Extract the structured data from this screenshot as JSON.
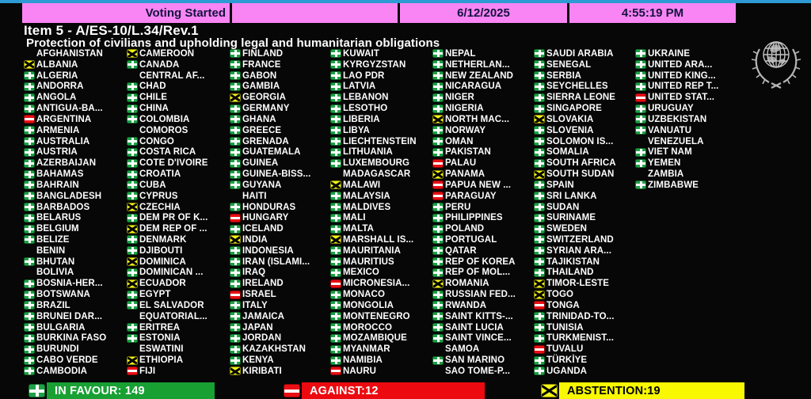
{
  "colors": {
    "magenta": "#f885f3",
    "cyan": "#2e9ad3",
    "green": "#18a033",
    "red": "#ec0a10",
    "yellow": "#f8f800",
    "icon_green": "#1fa148",
    "icon_red": "#e90f15",
    "icon_yellow": "#f4f414"
  },
  "header": {
    "status": "Voting Started",
    "date": "6/12/2025",
    "time": "4:55:19 PM"
  },
  "title": "Item 5 - A/ES-10/L.34/Rev.1",
  "subtitle": "Protection of civilians and upholding legal and humanitarian obligations",
  "legend": {
    "in_favour": {
      "text": "IN FAVOUR: 149",
      "count": 149
    },
    "against": {
      "text": "AGAINST:12",
      "count": 12
    },
    "abstention": {
      "text": "ABSTENTION:19",
      "count": 19
    }
  },
  "board": {
    "columns": [
      {
        "items": [
          {
            "name": "AFGHANISTAN",
            "vote": "none"
          },
          {
            "name": "ALBANIA",
            "vote": "abstain"
          },
          {
            "name": "ALGERIA",
            "vote": "yes"
          },
          {
            "name": "ANDORRA",
            "vote": "yes"
          },
          {
            "name": "ANGOLA",
            "vote": "yes"
          },
          {
            "name": "ANTIGUA-BA...",
            "vote": "yes"
          },
          {
            "name": "ARGENTINA",
            "vote": "no"
          },
          {
            "name": "ARMENIA",
            "vote": "yes"
          },
          {
            "name": "AUSTRALIA",
            "vote": "yes"
          },
          {
            "name": "AUSTRIA",
            "vote": "yes"
          },
          {
            "name": "AZERBAIJAN",
            "vote": "yes"
          },
          {
            "name": "BAHAMAS",
            "vote": "yes"
          },
          {
            "name": "BAHRAIN",
            "vote": "yes"
          },
          {
            "name": "BANGLADESH",
            "vote": "yes"
          },
          {
            "name": "BARBADOS",
            "vote": "yes"
          },
          {
            "name": "BELARUS",
            "vote": "yes"
          },
          {
            "name": "BELGIUM",
            "vote": "yes"
          },
          {
            "name": "BELIZE",
            "vote": "yes"
          },
          {
            "name": "BENIN",
            "vote": "none"
          },
          {
            "name": "BHUTAN",
            "vote": "yes"
          },
          {
            "name": "BOLIVIA",
            "vote": "none"
          },
          {
            "name": "BOSNIA-HER...",
            "vote": "yes"
          },
          {
            "name": "BOTSWANA",
            "vote": "yes"
          },
          {
            "name": "BRAZIL",
            "vote": "yes"
          },
          {
            "name": "BRUNEI DAR...",
            "vote": "yes"
          },
          {
            "name": "BULGARIA",
            "vote": "yes"
          },
          {
            "name": "BURKINA FASO",
            "vote": "yes"
          },
          {
            "name": "BURUNDI",
            "vote": "yes"
          },
          {
            "name": "CABO VERDE",
            "vote": "yes"
          },
          {
            "name": "CAMBODIA",
            "vote": "yes"
          }
        ]
      },
      {
        "items": [
          {
            "name": "CAMEROON",
            "vote": "abstain"
          },
          {
            "name": "CANADA",
            "vote": "yes"
          },
          {
            "name": "CENTRAL AF...",
            "vote": "none"
          },
          {
            "name": "CHAD",
            "vote": "yes"
          },
          {
            "name": "CHILE",
            "vote": "yes"
          },
          {
            "name": "CHINA",
            "vote": "yes"
          },
          {
            "name": "COLOMBIA",
            "vote": "yes"
          },
          {
            "name": "COMOROS",
            "vote": "none"
          },
          {
            "name": "CONGO",
            "vote": "yes"
          },
          {
            "name": "COSTA RICA",
            "vote": "yes"
          },
          {
            "name": "COTE D'IVOIRE",
            "vote": "yes"
          },
          {
            "name": "CROATIA",
            "vote": "yes"
          },
          {
            "name": "CUBA",
            "vote": "yes"
          },
          {
            "name": "CYPRUS",
            "vote": "yes"
          },
          {
            "name": "CZECHIA",
            "vote": "abstain"
          },
          {
            "name": "DEM PR OF K...",
            "vote": "yes"
          },
          {
            "name": "DEM REP OF ...",
            "vote": "abstain"
          },
          {
            "name": "DENMARK",
            "vote": "yes"
          },
          {
            "name": "DJIBOUTI",
            "vote": "yes"
          },
          {
            "name": "DOMINICA",
            "vote": "abstain"
          },
          {
            "name": "DOMINICAN ...",
            "vote": "yes"
          },
          {
            "name": "ECUADOR",
            "vote": "abstain"
          },
          {
            "name": "EGYPT",
            "vote": "yes"
          },
          {
            "name": "EL SALVADOR",
            "vote": "yes"
          },
          {
            "name": "EQUATORIAL...",
            "vote": "none"
          },
          {
            "name": "ERITREA",
            "vote": "yes"
          },
          {
            "name": "ESTONIA",
            "vote": "yes"
          },
          {
            "name": "ESWATINI",
            "vote": "none"
          },
          {
            "name": "ETHIOPIA",
            "vote": "abstain"
          },
          {
            "name": "FIJI",
            "vote": "no"
          }
        ]
      },
      {
        "items": [
          {
            "name": "FINLAND",
            "vote": "yes"
          },
          {
            "name": "FRANCE",
            "vote": "yes"
          },
          {
            "name": "GABON",
            "vote": "yes"
          },
          {
            "name": "GAMBIA",
            "vote": "yes"
          },
          {
            "name": "GEORGIA",
            "vote": "abstain"
          },
          {
            "name": "GERMANY",
            "vote": "yes"
          },
          {
            "name": "GHANA",
            "vote": "yes"
          },
          {
            "name": "GREECE",
            "vote": "yes"
          },
          {
            "name": "GRENADA",
            "vote": "yes"
          },
          {
            "name": "GUATEMALA",
            "vote": "yes"
          },
          {
            "name": "GUINEA",
            "vote": "yes"
          },
          {
            "name": "GUINEA-BISS...",
            "vote": "yes"
          },
          {
            "name": "GUYANA",
            "vote": "yes"
          },
          {
            "name": "HAITI",
            "vote": "none"
          },
          {
            "name": "HONDURAS",
            "vote": "yes"
          },
          {
            "name": "HUNGARY",
            "vote": "no"
          },
          {
            "name": "ICELAND",
            "vote": "yes"
          },
          {
            "name": "INDIA",
            "vote": "abstain"
          },
          {
            "name": "INDONESIA",
            "vote": "yes"
          },
          {
            "name": "IRAN (ISLAMI...",
            "vote": "yes"
          },
          {
            "name": "IRAQ",
            "vote": "yes"
          },
          {
            "name": "IRELAND",
            "vote": "yes"
          },
          {
            "name": "ISRAEL",
            "vote": "no"
          },
          {
            "name": "ITALY",
            "vote": "yes"
          },
          {
            "name": "JAMAICA",
            "vote": "yes"
          },
          {
            "name": "JAPAN",
            "vote": "yes"
          },
          {
            "name": "JORDAN",
            "vote": "yes"
          },
          {
            "name": "KAZAKHSTAN",
            "vote": "yes"
          },
          {
            "name": "KENYA",
            "vote": "yes"
          },
          {
            "name": "KIRIBATI",
            "vote": "abstain"
          }
        ]
      },
      {
        "items": [
          {
            "name": "KUWAIT",
            "vote": "yes"
          },
          {
            "name": "KYRGYZSTAN",
            "vote": "yes"
          },
          {
            "name": "LAO PDR",
            "vote": "yes"
          },
          {
            "name": "LATVIA",
            "vote": "yes"
          },
          {
            "name": "LEBANON",
            "vote": "yes"
          },
          {
            "name": "LESOTHO",
            "vote": "yes"
          },
          {
            "name": "LIBERIA",
            "vote": "yes"
          },
          {
            "name": "LIBYA",
            "vote": "yes"
          },
          {
            "name": "LIECHTENSTEIN",
            "vote": "yes"
          },
          {
            "name": "LITHUANIA",
            "vote": "yes"
          },
          {
            "name": "LUXEMBOURG",
            "vote": "yes"
          },
          {
            "name": "MADAGASCAR",
            "vote": "none"
          },
          {
            "name": "MALAWI",
            "vote": "abstain"
          },
          {
            "name": "MALAYSIA",
            "vote": "yes"
          },
          {
            "name": "MALDIVES",
            "vote": "yes"
          },
          {
            "name": "MALI",
            "vote": "yes"
          },
          {
            "name": "MALTA",
            "vote": "yes"
          },
          {
            "name": "MARSHALL IS...",
            "vote": "abstain"
          },
          {
            "name": "MAURITANIA",
            "vote": "yes"
          },
          {
            "name": "MAURITIUS",
            "vote": "yes"
          },
          {
            "name": "MEXICO",
            "vote": "yes"
          },
          {
            "name": "MICRONESIA...",
            "vote": "no"
          },
          {
            "name": "MONACO",
            "vote": "yes"
          },
          {
            "name": "MONGOLIA",
            "vote": "yes"
          },
          {
            "name": "MONTENEGRO",
            "vote": "yes"
          },
          {
            "name": "MOROCCO",
            "vote": "yes"
          },
          {
            "name": "MOZAMBIQUE",
            "vote": "yes"
          },
          {
            "name": "MYANMAR",
            "vote": "yes"
          },
          {
            "name": "NAMIBIA",
            "vote": "yes"
          },
          {
            "name": "NAURU",
            "vote": "no"
          }
        ]
      },
      {
        "items": [
          {
            "name": "NEPAL",
            "vote": "yes"
          },
          {
            "name": "NETHERLAN...",
            "vote": "yes"
          },
          {
            "name": "NEW ZEALAND",
            "vote": "yes"
          },
          {
            "name": "NICARAGUA",
            "vote": "yes"
          },
          {
            "name": "NIGER",
            "vote": "yes"
          },
          {
            "name": "NIGERIA",
            "vote": "yes"
          },
          {
            "name": "NORTH MAC...",
            "vote": "abstain"
          },
          {
            "name": "NORWAY",
            "vote": "yes"
          },
          {
            "name": "OMAN",
            "vote": "yes"
          },
          {
            "name": "PAKISTAN",
            "vote": "yes"
          },
          {
            "name": "PALAU",
            "vote": "no"
          },
          {
            "name": "PANAMA",
            "vote": "abstain"
          },
          {
            "name": "PAPUA NEW ...",
            "vote": "no"
          },
          {
            "name": "PARAGUAY",
            "vote": "no"
          },
          {
            "name": "PERU",
            "vote": "yes"
          },
          {
            "name": "PHILIPPINES",
            "vote": "yes"
          },
          {
            "name": "POLAND",
            "vote": "yes"
          },
          {
            "name": "PORTUGAL",
            "vote": "yes"
          },
          {
            "name": "QATAR",
            "vote": "yes"
          },
          {
            "name": "REP OF KOREA",
            "vote": "yes"
          },
          {
            "name": "REP OF MOL...",
            "vote": "yes"
          },
          {
            "name": "ROMANIA",
            "vote": "abstain"
          },
          {
            "name": "RUSSIAN FED...",
            "vote": "yes"
          },
          {
            "name": "RWANDA",
            "vote": "yes"
          },
          {
            "name": "SAINT KITTS-...",
            "vote": "yes"
          },
          {
            "name": "SAINT LUCIA",
            "vote": "yes"
          },
          {
            "name": "SAINT VINCE...",
            "vote": "yes"
          },
          {
            "name": "SAMOA",
            "vote": "none"
          },
          {
            "name": "SAN MARINO",
            "vote": "yes"
          },
          {
            "name": "SAO TOME-P...",
            "vote": "none"
          }
        ]
      },
      {
        "items": [
          {
            "name": "SAUDI ARABIA",
            "vote": "yes"
          },
          {
            "name": "SENEGAL",
            "vote": "yes"
          },
          {
            "name": "SERBIA",
            "vote": "yes"
          },
          {
            "name": "SEYCHELLES",
            "vote": "yes"
          },
          {
            "name": "SIERRA LEONE",
            "vote": "yes"
          },
          {
            "name": "SINGAPORE",
            "vote": "yes"
          },
          {
            "name": "SLOVAKIA",
            "vote": "abstain"
          },
          {
            "name": "SLOVENIA",
            "vote": "yes"
          },
          {
            "name": "SOLOMON IS...",
            "vote": "yes"
          },
          {
            "name": "SOMALIA",
            "vote": "yes"
          },
          {
            "name": "SOUTH AFRICA",
            "vote": "yes"
          },
          {
            "name": "SOUTH SUDAN",
            "vote": "abstain"
          },
          {
            "name": "SPAIN",
            "vote": "yes"
          },
          {
            "name": "SRI LANKA",
            "vote": "yes"
          },
          {
            "name": "SUDAN",
            "vote": "yes"
          },
          {
            "name": "SURINAME",
            "vote": "yes"
          },
          {
            "name": "SWEDEN",
            "vote": "yes"
          },
          {
            "name": "SWITZERLAND",
            "vote": "yes"
          },
          {
            "name": "SYRIAN ARA...",
            "vote": "yes"
          },
          {
            "name": "TAJIKISTAN",
            "vote": "yes"
          },
          {
            "name": "THAILAND",
            "vote": "yes"
          },
          {
            "name": "TIMOR-LESTE",
            "vote": "abstain"
          },
          {
            "name": "TOGO",
            "vote": "abstain"
          },
          {
            "name": "TONGA",
            "vote": "no"
          },
          {
            "name": "TRINIDAD-TO...",
            "vote": "yes"
          },
          {
            "name": "TUNISIA",
            "vote": "yes"
          },
          {
            "name": "TURKMENIST...",
            "vote": "yes"
          },
          {
            "name": "TUVALU",
            "vote": "no"
          },
          {
            "name": "TÜRKİYE",
            "vote": "yes"
          },
          {
            "name": "UGANDA",
            "vote": "yes"
          }
        ]
      },
      {
        "items": [
          {
            "name": "UKRAINE",
            "vote": "yes"
          },
          {
            "name": "UNITED ARA...",
            "vote": "yes"
          },
          {
            "name": "UNITED KING...",
            "vote": "yes"
          },
          {
            "name": "UNITED REP T...",
            "vote": "yes"
          },
          {
            "name": "UNITED STAT...",
            "vote": "no"
          },
          {
            "name": "URUGUAY",
            "vote": "yes"
          },
          {
            "name": "UZBEKISTAN",
            "vote": "yes"
          },
          {
            "name": "VANUATU",
            "vote": "yes"
          },
          {
            "name": "VENEZUELA",
            "vote": "none"
          },
          {
            "name": "VIET NAM",
            "vote": "yes"
          },
          {
            "name": "YEMEN",
            "vote": "yes"
          },
          {
            "name": "ZAMBIA",
            "vote": "none"
          },
          {
            "name": "ZIMBABWE",
            "vote": "yes"
          }
        ]
      }
    ]
  }
}
